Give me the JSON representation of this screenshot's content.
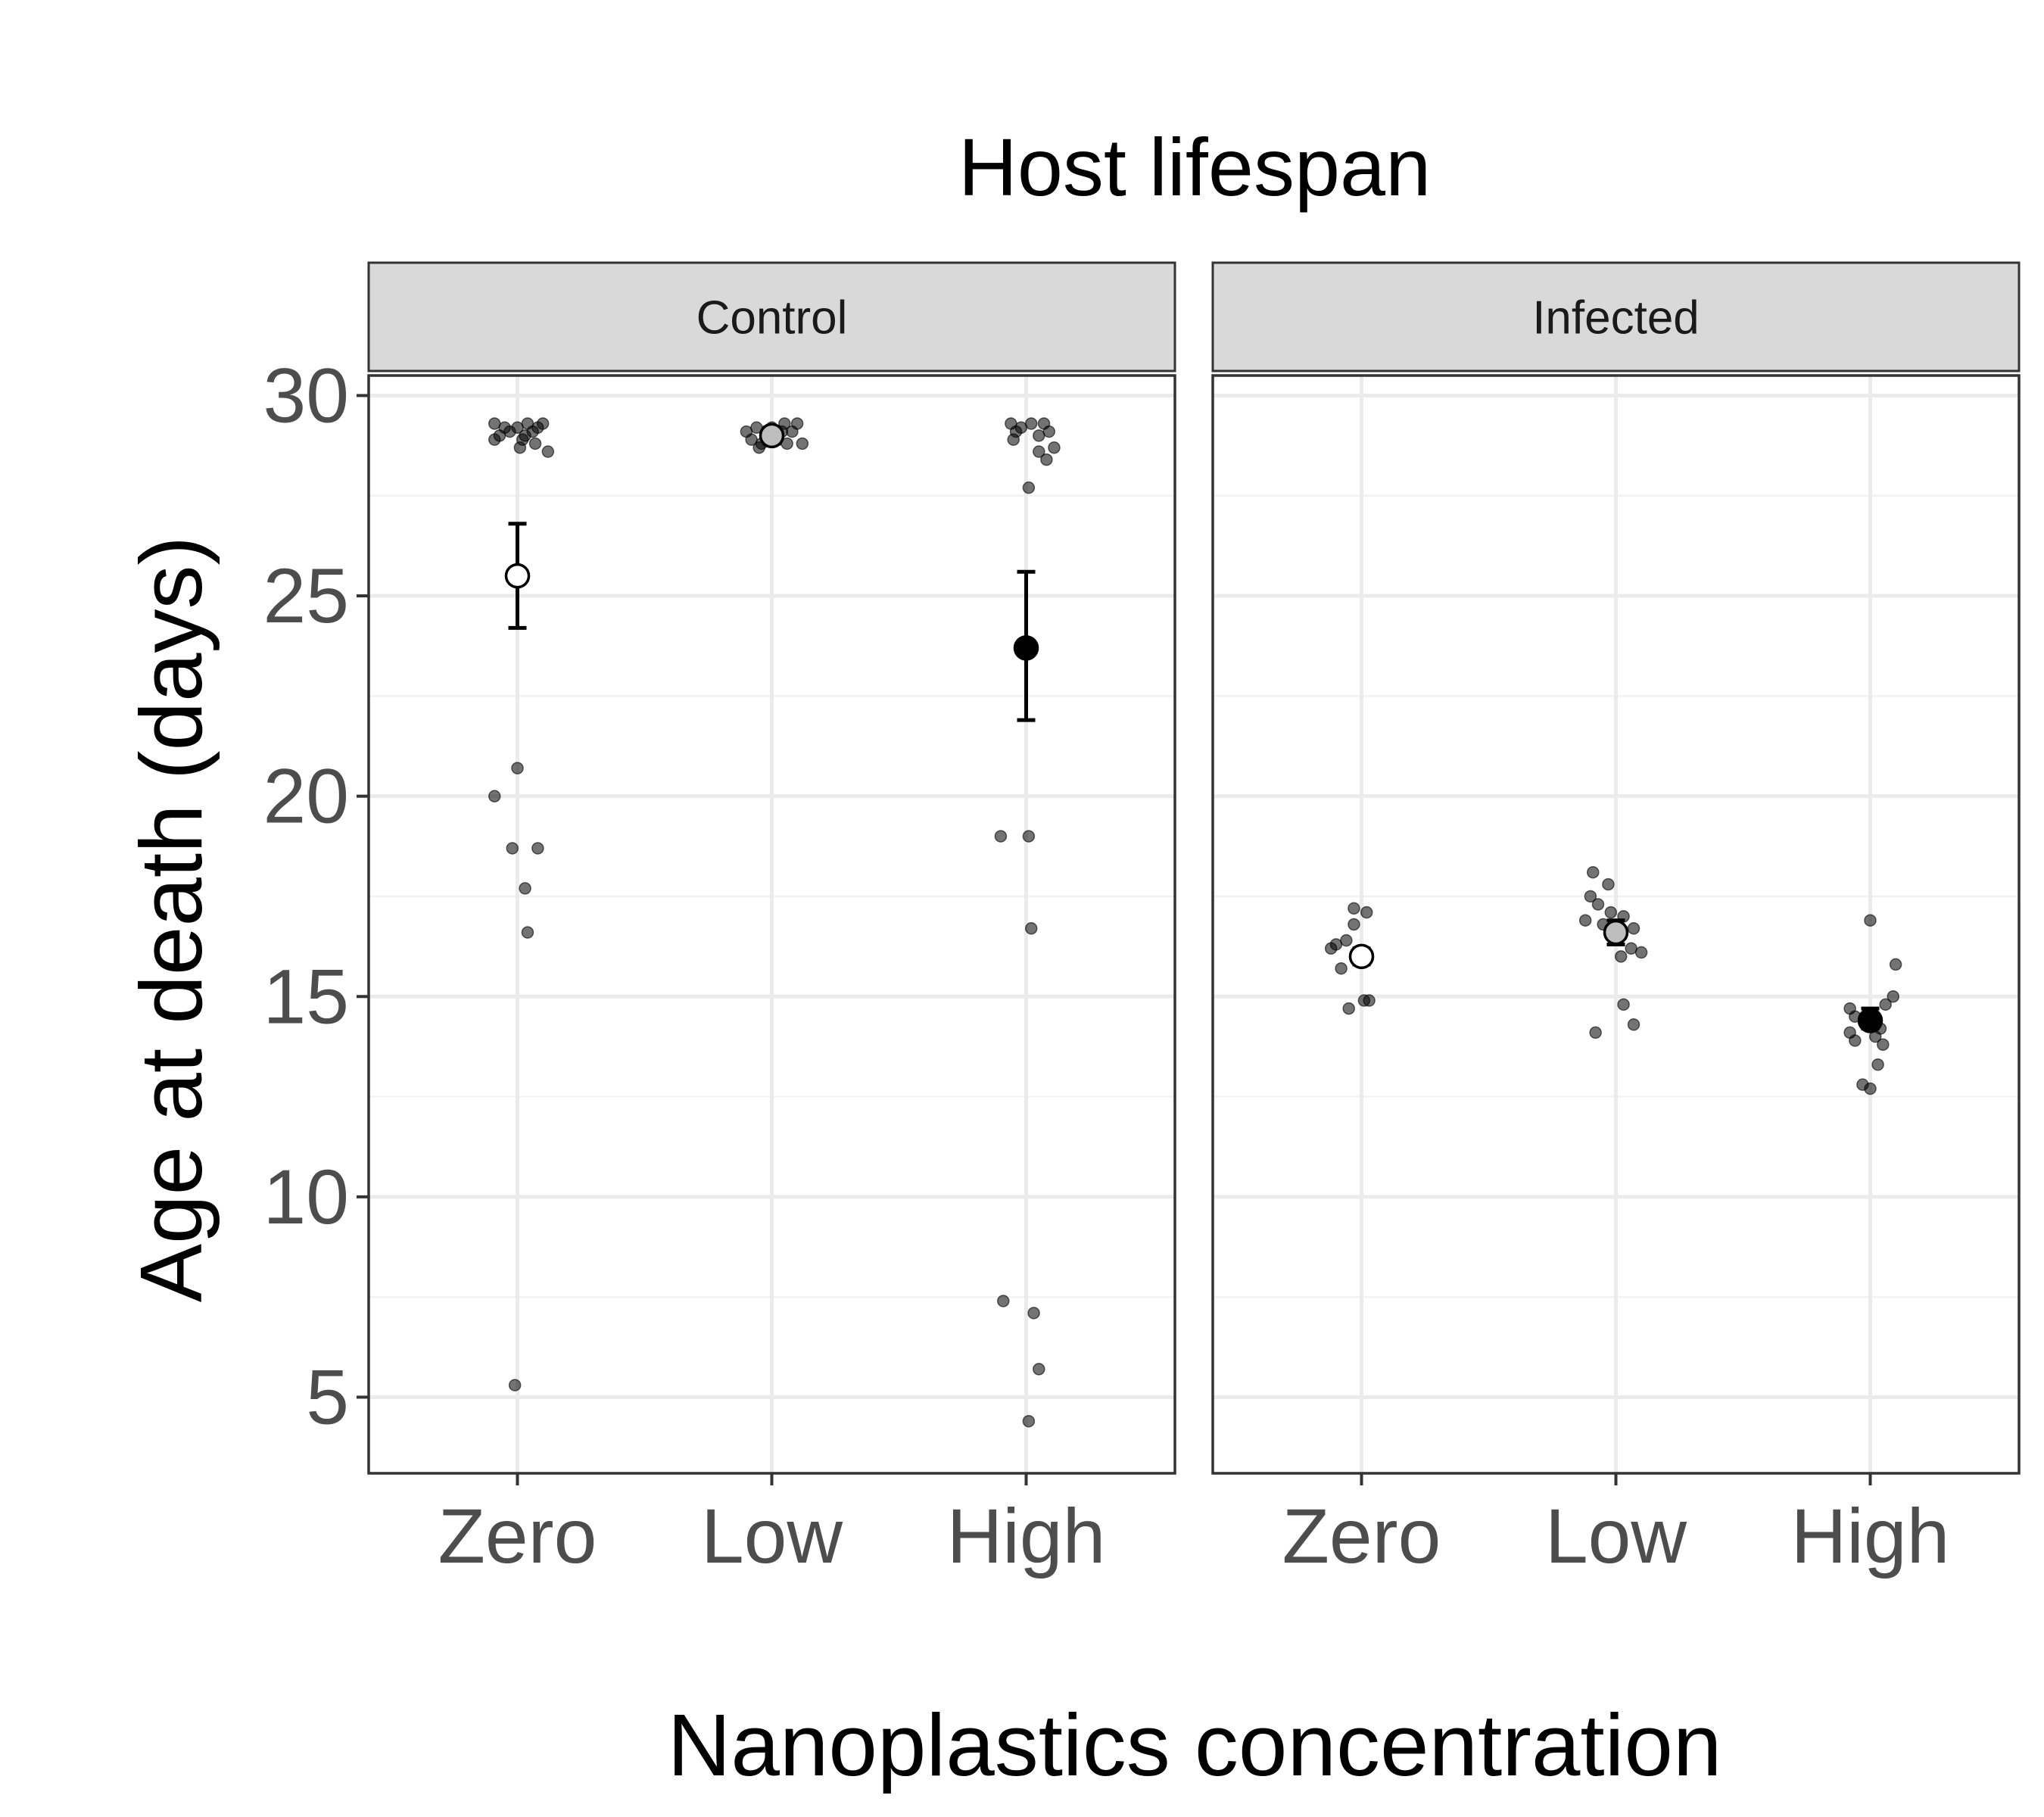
{
  "chart_data": {
    "type": "scatter",
    "title": "Host lifespan",
    "xlabel": "Nanoplastics concentration",
    "ylabel": "Age at death (days)",
    "ylim": [
      3.1,
      30.5
    ],
    "yticks": [
      5,
      10,
      15,
      20,
      25,
      30
    ],
    "categories": [
      "Zero",
      "Low",
      "High"
    ],
    "grid": true,
    "legend": "none",
    "facets": [
      {
        "name": "Control",
        "groups": [
          {
            "category": "Zero",
            "mean": 25.5,
            "lower": 24.2,
            "upper": 26.8,
            "fill": "#ffffff",
            "points": [
              [
                -0.09,
                29.3
              ],
              [
                -0.07,
                29.0
              ],
              [
                -0.05,
                29.2
              ],
              [
                -0.03,
                29.1
              ],
              [
                0.0,
                29.2
              ],
              [
                0.02,
                28.9
              ],
              [
                0.04,
                29.3
              ],
              [
                0.06,
                29.1
              ],
              [
                0.08,
                29.2
              ],
              [
                0.1,
                29.3
              ],
              [
                0.01,
                28.7
              ],
              [
                0.07,
                28.8
              ],
              [
                0.12,
                28.6
              ],
              [
                -0.09,
                28.9
              ],
              [
                0.03,
                29.0
              ],
              [
                0.0,
                20.7
              ],
              [
                -0.09,
                20.0
              ],
              [
                -0.02,
                18.7
              ],
              [
                0.08,
                18.7
              ],
              [
                0.03,
                17.7
              ],
              [
                0.04,
                16.6
              ],
              [
                -0.01,
                5.3
              ]
            ]
          },
          {
            "category": "Low",
            "mean": 29.0,
            "lower": 28.8,
            "upper": 29.2,
            "fill": "#bdbdbd",
            "points": [
              [
                -0.1,
                29.1
              ],
              [
                -0.08,
                28.9
              ],
              [
                -0.06,
                29.2
              ],
              [
                -0.04,
                28.8
              ],
              [
                -0.02,
                29.0
              ],
              [
                0.0,
                29.2
              ],
              [
                0.02,
                28.9
              ],
              [
                0.04,
                29.1
              ],
              [
                0.06,
                28.8
              ],
              [
                0.08,
                29.1
              ],
              [
                0.1,
                29.3
              ],
              [
                0.12,
                28.8
              ],
              [
                -0.05,
                28.7
              ],
              [
                0.05,
                29.3
              ]
            ]
          },
          {
            "category": "High",
            "mean": 23.7,
            "lower": 21.9,
            "upper": 25.6,
            "fill": "#000000",
            "points": [
              [
                -0.06,
                29.3
              ],
              [
                -0.04,
                29.1
              ],
              [
                -0.02,
                29.2
              ],
              [
                0.02,
                29.3
              ],
              [
                0.05,
                29.0
              ],
              [
                0.07,
                29.3
              ],
              [
                0.09,
                29.1
              ],
              [
                0.11,
                28.7
              ],
              [
                0.08,
                28.4
              ],
              [
                0.05,
                28.6
              ],
              [
                -0.05,
                28.9
              ],
              [
                0.01,
                27.7
              ],
              [
                -0.1,
                19.0
              ],
              [
                0.01,
                19.0
              ],
              [
                0.02,
                16.7
              ],
              [
                -0.09,
                7.4
              ],
              [
                0.03,
                7.1
              ],
              [
                0.05,
                5.7
              ],
              [
                0.01,
                4.4
              ]
            ]
          }
        ]
      },
      {
        "name": "Infected",
        "groups": [
          {
            "category": "Zero",
            "mean": 16.0,
            "lower": 15.8,
            "upper": 16.2,
            "fill": "#ffffff",
            "points": [
              [
                -0.03,
                17.2
              ],
              [
                0.02,
                17.1
              ],
              [
                -0.03,
                16.8
              ],
              [
                -0.1,
                16.3
              ],
              [
                -0.12,
                16.2
              ],
              [
                0.01,
                16.0
              ],
              [
                -0.08,
                15.7
              ],
              [
                0.03,
                14.9
              ],
              [
                0.01,
                14.9
              ],
              [
                -0.05,
                14.7
              ],
              [
                0.02,
                15.9
              ],
              [
                -0.06,
                16.4
              ]
            ]
          },
          {
            "category": "Low",
            "mean": 16.6,
            "lower": 16.3,
            "upper": 16.9,
            "fill": "#bdbdbd",
            "points": [
              [
                -0.09,
                18.1
              ],
              [
                -0.03,
                17.8
              ],
              [
                -0.1,
                17.5
              ],
              [
                -0.07,
                17.3
              ],
              [
                -0.02,
                17.1
              ],
              [
                0.03,
                17.0
              ],
              [
                -0.12,
                16.9
              ],
              [
                0.07,
                16.7
              ],
              [
                0.06,
                16.2
              ],
              [
                0.1,
                16.1
              ],
              [
                0.02,
                16.0
              ],
              [
                0.03,
                14.8
              ],
              [
                0.07,
                14.3
              ],
              [
                -0.08,
                14.1
              ],
              [
                -0.05,
                16.8
              ]
            ]
          },
          {
            "category": "High",
            "mean": 14.4,
            "lower": 14.2,
            "upper": 14.7,
            "fill": "#000000",
            "points": [
              [
                0.0,
                16.9
              ],
              [
                0.1,
                15.8
              ],
              [
                0.09,
                15.0
              ],
              [
                0.06,
                14.8
              ],
              [
                -0.08,
                14.7
              ],
              [
                -0.06,
                14.5
              ],
              [
                0.04,
                14.2
              ],
              [
                -0.08,
                14.1
              ],
              [
                0.02,
                14.0
              ],
              [
                -0.06,
                13.9
              ],
              [
                0.05,
                13.8
              ],
              [
                0.03,
                13.3
              ],
              [
                -0.03,
                12.8
              ],
              [
                0.0,
                12.7
              ]
            ]
          }
        ]
      }
    ]
  }
}
